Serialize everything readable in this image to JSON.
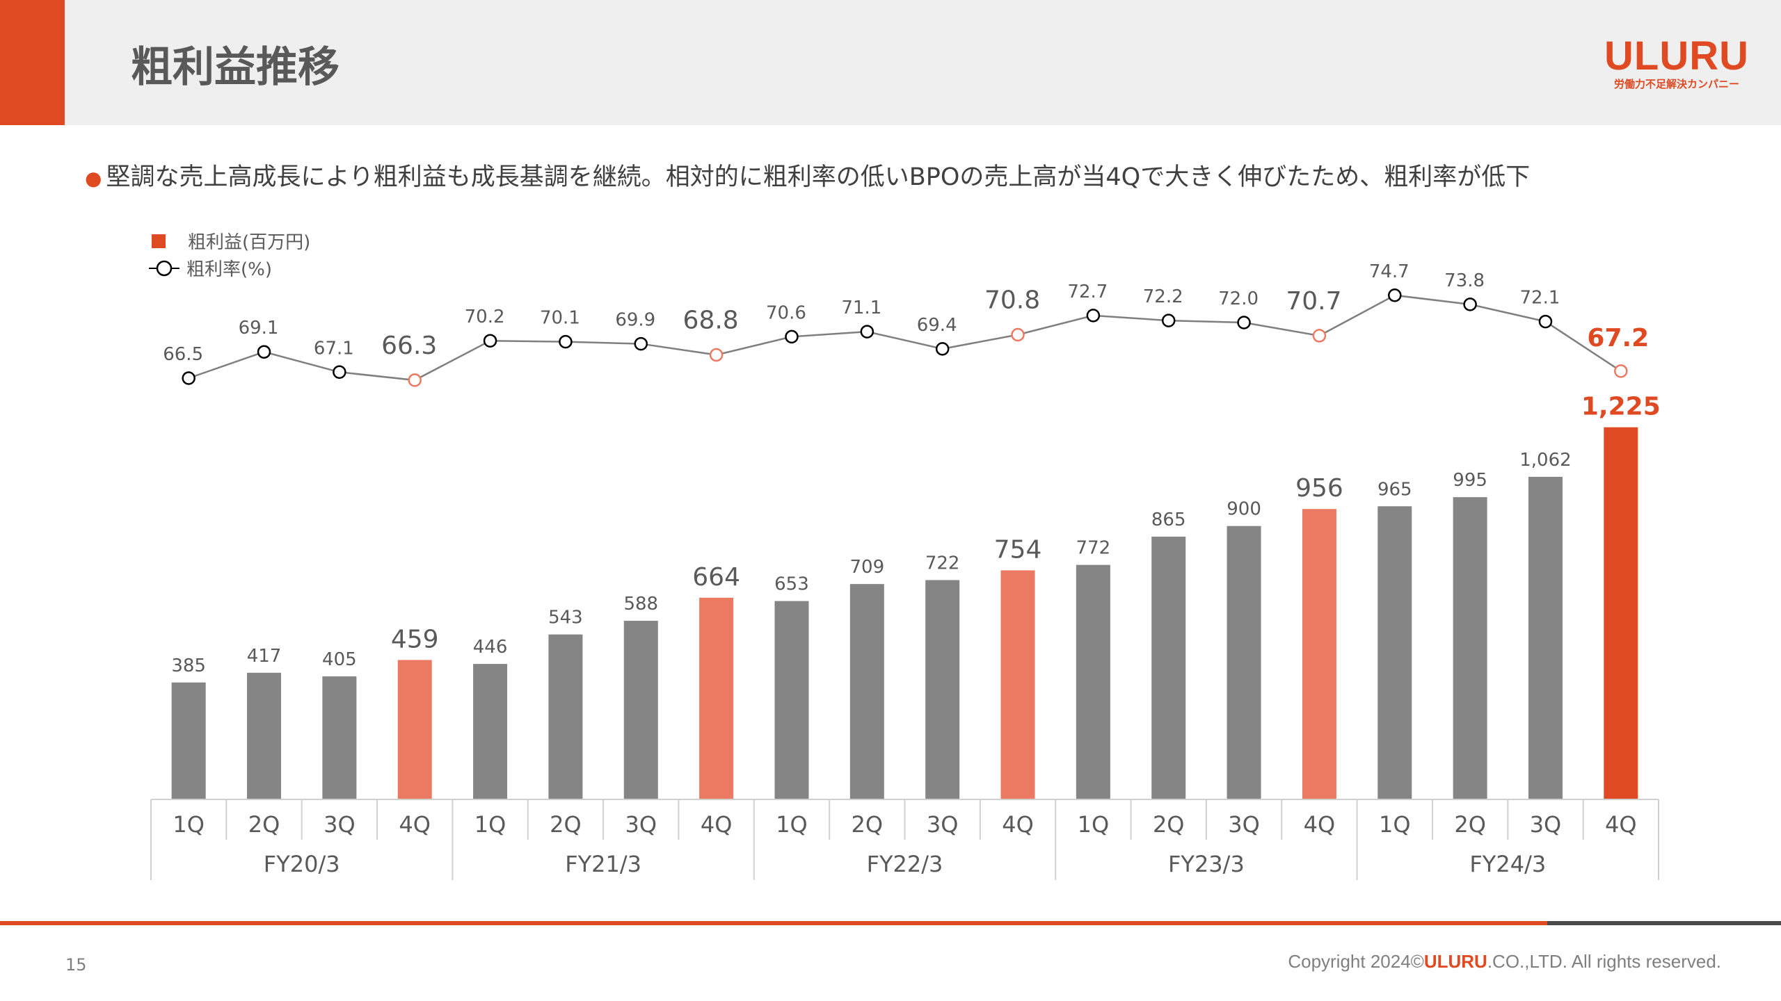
{
  "header": {
    "title": "粗利益推移",
    "logo": "ULURU",
    "logo_tagline": "労働力不足解決カンパニー"
  },
  "bullet": "堅調な売上高成長により粗利益も成長基調を継続。相対的に粗利率の低いBPOの売上高が当4Qで大きく伸びたため、粗利率が低下",
  "chart_data": {
    "type": "bar+line",
    "legend": {
      "bar": "粗利益(百万円)",
      "line": "粗利率(%)",
      "placement": "top-left"
    },
    "categories": [
      "1Q",
      "2Q",
      "3Q",
      "4Q",
      "1Q",
      "2Q",
      "3Q",
      "4Q",
      "1Q",
      "2Q",
      "3Q",
      "4Q",
      "1Q",
      "2Q",
      "3Q",
      "4Q",
      "1Q",
      "2Q",
      "3Q",
      "4Q"
    ],
    "groups": [
      "FY20/3",
      "FY21/3",
      "FY22/3",
      "FY23/3",
      "FY24/3"
    ],
    "series": [
      {
        "name": "粗利益(百万円)",
        "type": "bar",
        "values": [
          385,
          417,
          405,
          459,
          446,
          543,
          588,
          664,
          653,
          709,
          722,
          754,
          772,
          865,
          900,
          956,
          965,
          995,
          1062,
          1225
        ],
        "labels": [
          "385",
          "417",
          "405",
          "459",
          "446",
          "543",
          "588",
          "664",
          "653",
          "709",
          "722",
          "754",
          "772",
          "865",
          "900",
          "956",
          "965",
          "995",
          "1,062",
          "1,225"
        ]
      },
      {
        "name": "粗利率(%)",
        "type": "line",
        "values": [
          66.5,
          69.1,
          67.1,
          66.3,
          70.2,
          70.1,
          69.9,
          68.8,
          70.6,
          71.1,
          69.4,
          70.8,
          72.7,
          72.2,
          72.0,
          70.7,
          74.7,
          73.8,
          72.1,
          67.2
        ],
        "labels": [
          "66.5",
          "69.1",
          "67.1",
          "66.3",
          "70.2",
          "70.1",
          "69.9",
          "68.8",
          "70.6",
          "71.1",
          "69.4",
          "70.8",
          "72.7",
          "72.2",
          "72.0",
          "70.7",
          "74.7",
          "73.8",
          "72.1",
          "67.2"
        ]
      }
    ],
    "colors": {
      "bar": "#858585",
      "bar_q4": "#ec7a62",
      "bar_latest": "#e04a22",
      "line": "#7f7f7f",
      "text": "#595959"
    }
  },
  "footer": {
    "page": "15",
    "copyright_pre": "Copyright 2024©",
    "copyright_brand": "ULURU",
    "copyright_post": ".CO.,LTD. All rights reserved."
  }
}
